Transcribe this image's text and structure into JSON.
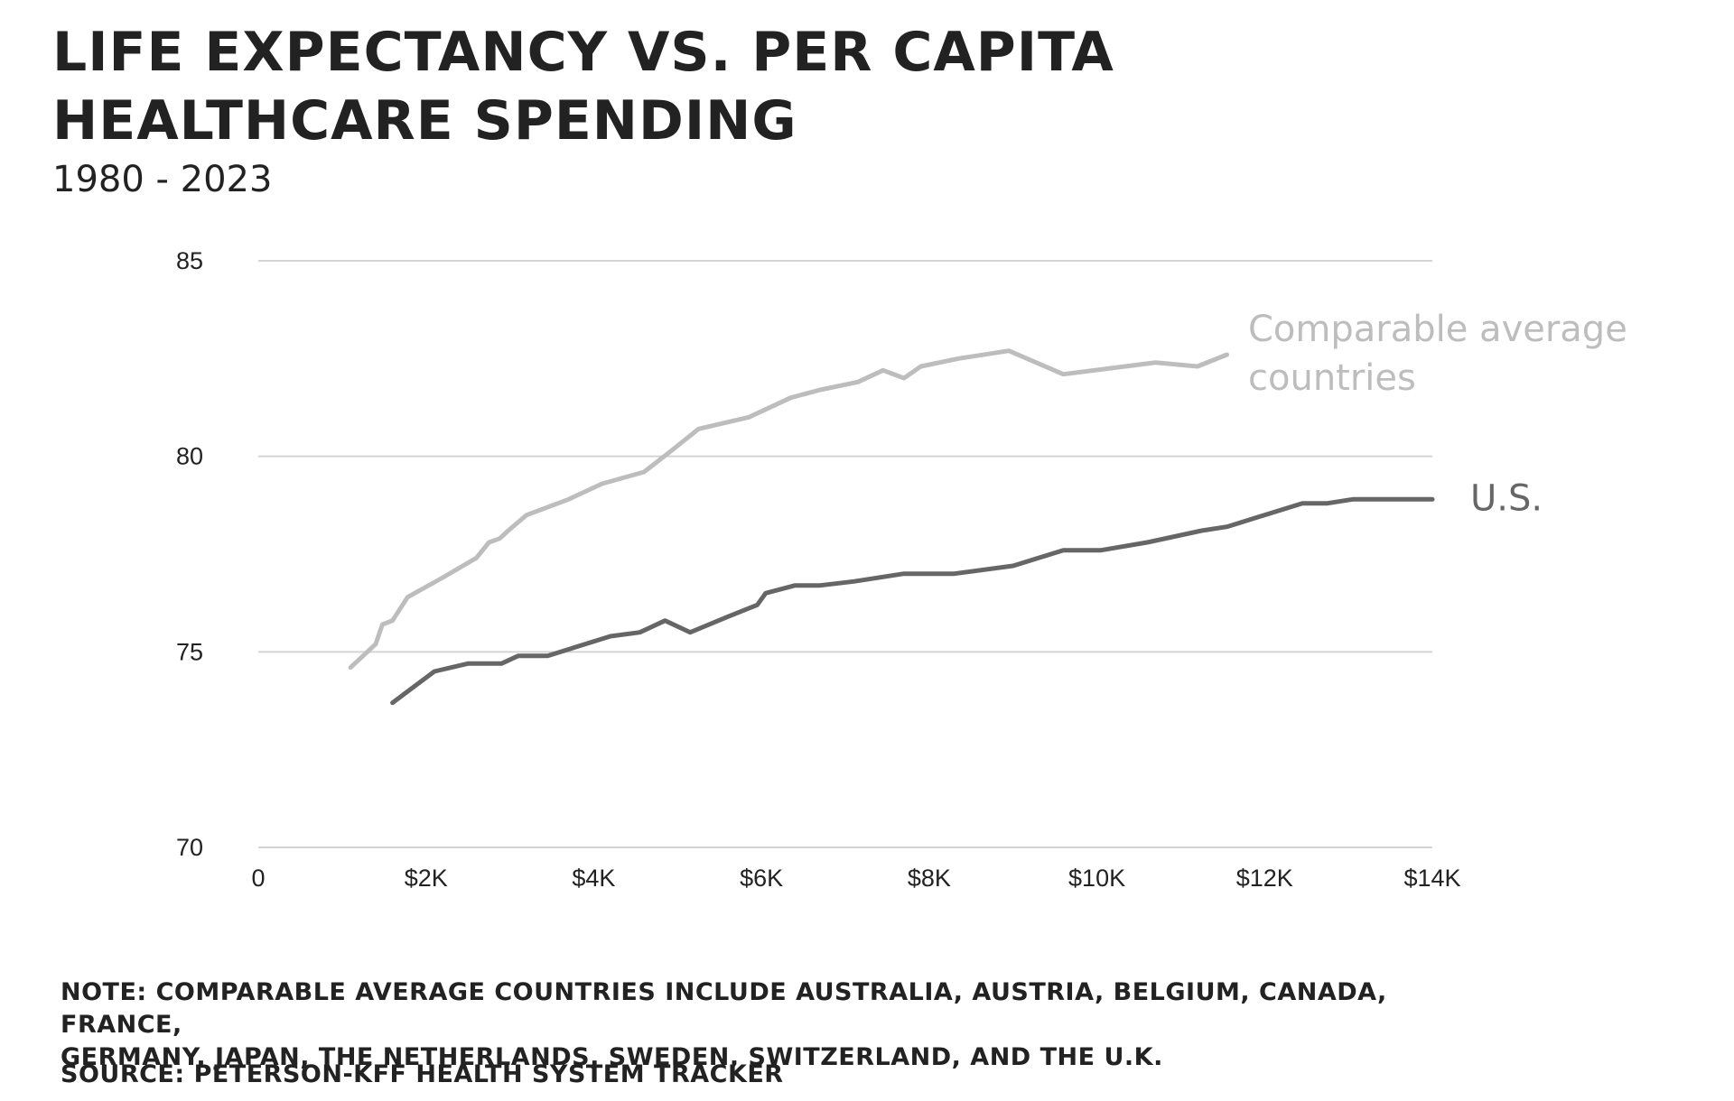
{
  "header": {
    "title_line1": "LIFE EXPECTANCY VS. PER CAPITA",
    "title_line2": "HEALTHCARE SPENDING",
    "subtitle": "1980 - 2023"
  },
  "footer": {
    "note_line1": "NOTE: COMPARABLE AVERAGE COUNTRIES INCLUDE AUSTRALIA, AUSTRIA, BELGIUM, CANADA, FRANCE,",
    "note_line2": "GERMANY, JAPAN, THE NETHERLANDS, SWEDEN, SWITZERLAND, AND THE U.K.",
    "source": "SOURCE: PETERSON-KFF HEALTH SYSTEM TRACKER"
  },
  "chart_data": {
    "type": "line",
    "title": "LIFE EXPECTANCY VS. PER CAPITA HEALTHCARE SPENDING",
    "subtitle": "1980 - 2023",
    "xlabel": "",
    "ylabel": "",
    "xlim": [
      0,
      14000
    ],
    "ylim": [
      70,
      85
    ],
    "x_ticks": [
      0,
      2000,
      4000,
      6000,
      8000,
      10000,
      12000,
      14000
    ],
    "x_tick_labels": [
      "0",
      "$2K",
      "$4K",
      "$6K",
      "$8K",
      "$10K",
      "$12K",
      "$14K"
    ],
    "y_ticks": [
      70,
      75,
      80,
      85
    ],
    "y_tick_labels": [
      "70",
      "75",
      "80",
      "85"
    ],
    "grid": "horizontal",
    "series": [
      {
        "name": "Comparable average countries",
        "label_lines": [
          "Comparable average",
          "countries"
        ],
        "color": "#bdbdbd",
        "x": [
          1100,
          1400,
          1480,
          1600,
          1780,
          2200,
          2600,
          2750,
          2880,
          2980,
          3200,
          3700,
          4100,
          4600,
          4900,
          5250,
          5850,
          6350,
          6700,
          7150,
          7450,
          7700,
          7900,
          8350,
          8950,
          9600,
          10700,
          11200,
          11550
        ],
        "y": [
          74.6,
          75.2,
          75.7,
          75.8,
          76.4,
          76.9,
          77.4,
          77.8,
          77.9,
          78.1,
          78.5,
          78.9,
          79.3,
          79.6,
          80.1,
          80.7,
          81.0,
          81.5,
          81.7,
          81.9,
          82.2,
          82.0,
          82.3,
          82.5,
          82.7,
          82.1,
          82.4,
          82.3,
          82.6
        ]
      },
      {
        "name": "U.S.",
        "label_lines": [
          "U.S."
        ],
        "color": "#666666",
        "x": [
          1600,
          2100,
          2500,
          2900,
          3100,
          3450,
          4200,
          4550,
          4850,
          5150,
          5600,
          5950,
          6050,
          6400,
          6700,
          7100,
          7700,
          8300,
          9000,
          9600,
          10050,
          10600,
          11250,
          11550,
          12450,
          12750,
          13050,
          13300,
          14000
        ],
        "y": [
          73.7,
          74.5,
          74.7,
          74.7,
          74.9,
          74.9,
          75.4,
          75.5,
          75.8,
          75.5,
          75.9,
          76.2,
          76.5,
          76.7,
          76.7,
          76.8,
          77.0,
          77.0,
          77.2,
          77.6,
          77.6,
          77.8,
          78.1,
          78.2,
          78.8,
          78.8,
          78.9,
          78.9,
          78.9
        ]
      }
    ]
  }
}
